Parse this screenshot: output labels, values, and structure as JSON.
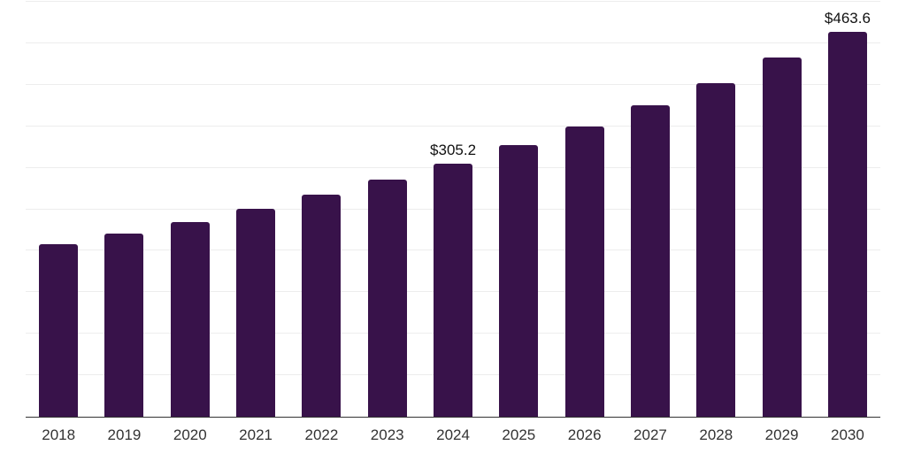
{
  "chart_data": {
    "type": "bar",
    "title": "",
    "xlabel": "",
    "ylabel": "",
    "categories": [
      "2018",
      "2019",
      "2020",
      "2021",
      "2022",
      "2023",
      "2024",
      "2025",
      "2026",
      "2027",
      "2028",
      "2029",
      "2030"
    ],
    "values": [
      207.5,
      220.3,
      235.1,
      250.6,
      268.1,
      285.7,
      305.2,
      327.4,
      349.3,
      375.3,
      402.5,
      432.5,
      463.6
    ],
    "data_labels": [
      "",
      "",
      "",
      "",
      "",
      "",
      "$305.2",
      "",
      "",
      "",
      "",
      "",
      "$463.6"
    ],
    "ylim": [
      0,
      500
    ],
    "gridline_interval": 50,
    "grid": "horizontal",
    "legend": "none",
    "colors": {
      "bar": "#38124a",
      "gridline": "#ededed",
      "axis": "#333333",
      "tick_label": "#333333",
      "data_label": "#111111",
      "background": "#ffffff"
    }
  }
}
